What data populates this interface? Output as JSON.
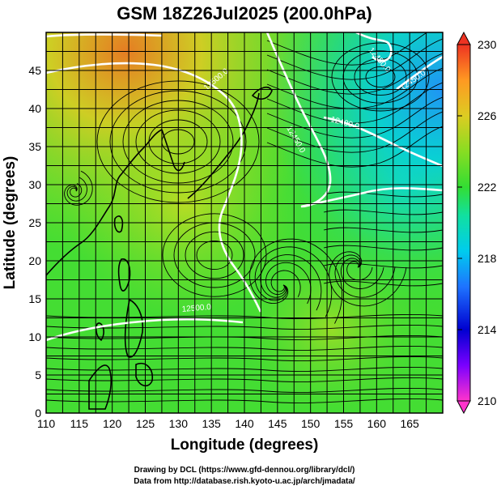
{
  "title": "GSM 18Z26Jul2025 (200.0hPa)",
  "xlabel": "Longitude (degrees)",
  "ylabel": "Latitude  (degrees)",
  "credits": [
    "Drawing by DCL (https://www.gfd-dennou.org/library/dcl/)",
    "Data from http://database.rish.kyoto-u.ac.jp/arch/jmadata/"
  ],
  "chart_data": {
    "type": "heatmap",
    "title": "GSM 18Z26Jul2025 (200.0hPa)",
    "xlabel": "Longitude (degrees)",
    "ylabel": "Latitude  (degrees)",
    "xlim": [
      110,
      170
    ],
    "ylim": [
      0,
      50
    ],
    "x_ticks": [
      110,
      115,
      120,
      125,
      130,
      135,
      140,
      145,
      150,
      155,
      160,
      165
    ],
    "y_ticks": [
      0,
      5,
      10,
      15,
      20,
      25,
      30,
      35,
      40,
      45
    ],
    "grid": true,
    "colorbar": {
      "range": [
        210,
        230
      ],
      "ticks": [
        210,
        214,
        218,
        222,
        226,
        230
      ],
      "colors": [
        "#ff33cc",
        "#7a00ff",
        "#0000d0",
        "#1e73ff",
        "#00ccee",
        "#11e0a0",
        "#33dd33",
        "#88dd22",
        "#ddcc22",
        "#ff9922",
        "#ee3322"
      ]
    },
    "contour_labels": [
      "12500.0",
      "12500.0",
      "12450.0",
      "12400.0",
      "12450.0",
      "12450.0"
    ],
    "streamline_color": "#000000",
    "contour_color": "#ffffff"
  }
}
